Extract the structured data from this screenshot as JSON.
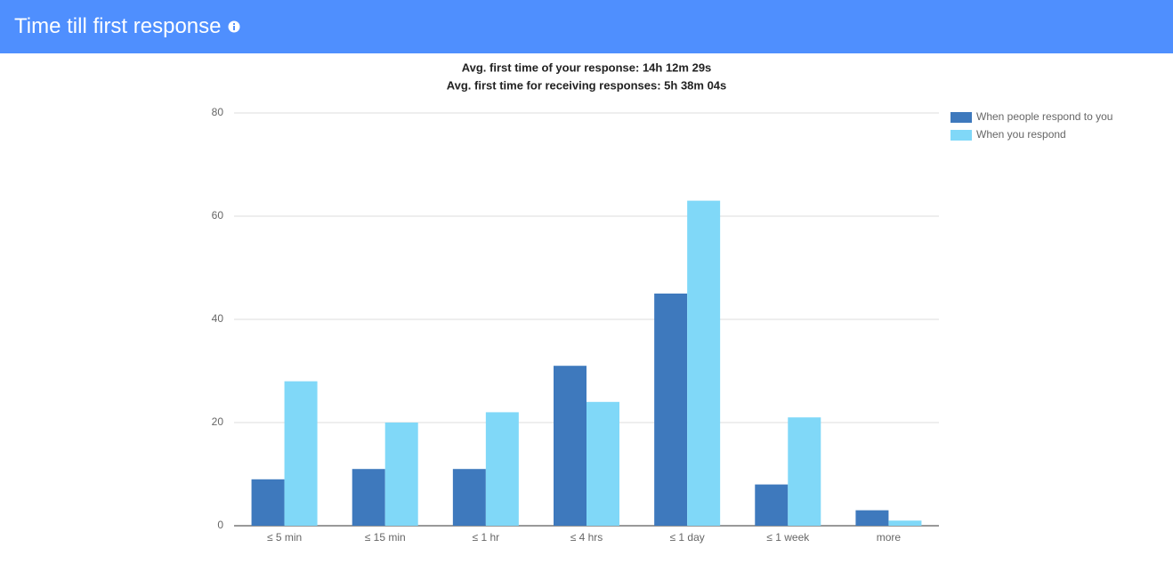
{
  "chart_data": {
    "type": "bar",
    "title": "Time till first response",
    "subtitle": [
      "Avg. first time of your response: 14h 12m 29s",
      "Avg. first time for receiving responses: 5h 38m 04s"
    ],
    "categories": [
      "≤ 5 min",
      "≤ 15 min",
      "≤ 1 hr",
      "≤ 4 hrs",
      "≤ 1 day",
      "≤ 1 week",
      "more"
    ],
    "series": [
      {
        "name": "When people respond to you",
        "color": "#3e79bd",
        "values": [
          9,
          11,
          11,
          31,
          45,
          8,
          3
        ]
      },
      {
        "name": "When you respond",
        "color": "#80d8f8",
        "values": [
          28,
          20,
          22,
          24,
          63,
          21,
          1
        ]
      }
    ],
    "ylim": [
      0,
      80
    ],
    "yticks": [
      0,
      20,
      40,
      60,
      80
    ],
    "grid": true,
    "legend": "right"
  }
}
